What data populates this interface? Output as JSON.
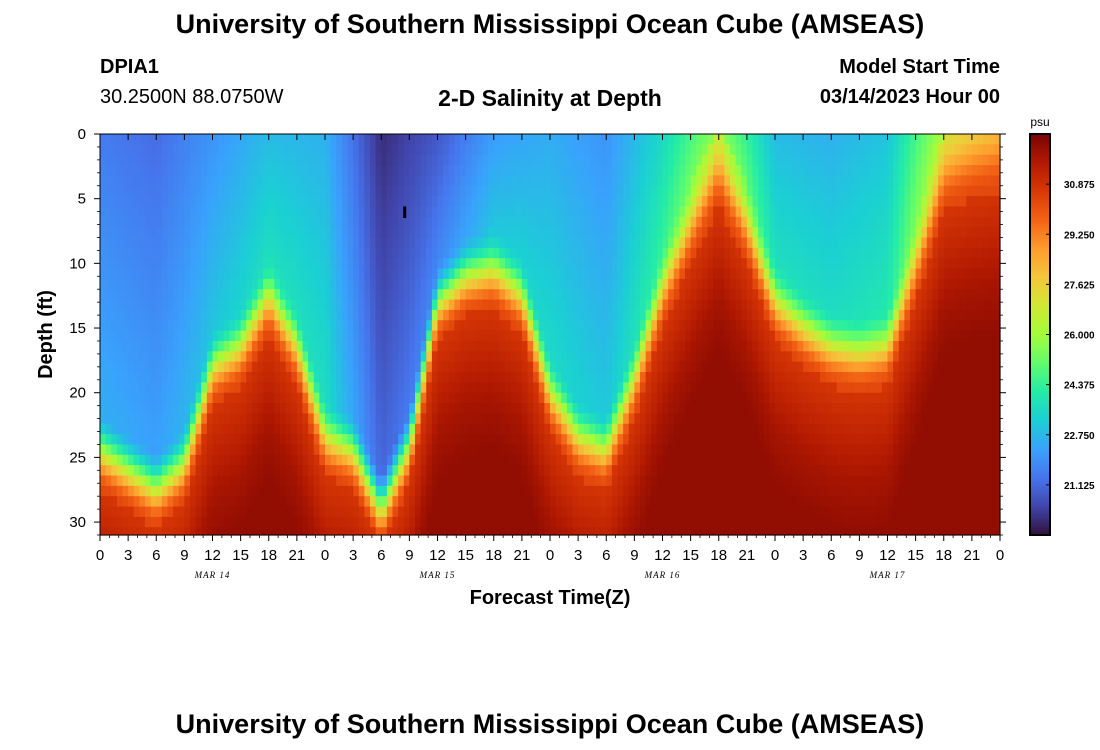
{
  "header": {
    "title": "University of Southern Mississippi Ocean Cube (AMSEAS)",
    "station_id": "DPIA1",
    "station_coords": "30.2500N  88.0750W",
    "plot_title": "2-D Salinity at Depth",
    "model_start_label": "Model Start Time",
    "model_start_value": "03/14/2023 Hour 00"
  },
  "footer": {
    "title": "University of Southern Mississippi Ocean Cube (AMSEAS)"
  },
  "chart_data": {
    "type": "heatmap",
    "title": "2-D Salinity at Depth",
    "xlabel": "Forecast Time(Z)",
    "ylabel": "Depth (ft)",
    "x_range_hours": [
      0,
      96
    ],
    "x_ticks_hours": [
      0,
      3,
      6,
      9,
      12,
      15,
      18,
      21,
      24,
      27,
      30,
      33,
      36,
      39,
      42,
      45,
      48,
      51,
      54,
      57,
      60,
      63,
      66,
      69,
      72,
      75,
      78,
      81,
      84,
      87,
      90,
      93,
      96
    ],
    "x_tick_labels": [
      "0",
      "3",
      "6",
      "9",
      "12",
      "15",
      "18",
      "21",
      "0",
      "3",
      "6",
      "9",
      "12",
      "15",
      "18",
      "21",
      "0",
      "3",
      "6",
      "9",
      "12",
      "15",
      "18",
      "21",
      "0",
      "3",
      "6",
      "9",
      "12",
      "15",
      "18",
      "21",
      "0"
    ],
    "date_labels": [
      {
        "text": "MAR 14",
        "hour": 12
      },
      {
        "text": "MAR 15",
        "hour": 36
      },
      {
        "text": "MAR 16",
        "hour": 60
      },
      {
        "text": "MAR 17",
        "hour": 84
      }
    ],
    "y_range": [
      0,
      31
    ],
    "y_ticks": [
      0,
      5,
      10,
      15,
      20,
      25,
      30
    ],
    "colorbar": {
      "unit": "psu",
      "min": 19.5,
      "max": 32.5,
      "tick_labels": [
        "30.875",
        "29.250",
        "27.625",
        "26.000",
        "24.375",
        "22.750",
        "21.125"
      ],
      "tick_values": [
        30.875,
        29.25,
        27.625,
        26.0,
        24.375,
        22.75,
        21.125
      ],
      "colors": [
        "#30123b",
        "#4145ab",
        "#4675ed",
        "#39a2fc",
        "#1bcfd4",
        "#24eca6",
        "#61fc6c",
        "#a4fc3b",
        "#d1e834",
        "#f3c63a",
        "#fe9b2d",
        "#f36315",
        "#d93806",
        "#b11901",
        "#7a0403"
      ]
    },
    "surface_salinity_series": {
      "hours": [
        0,
        6,
        12,
        18,
        24,
        30,
        36,
        42,
        48,
        54,
        60,
        66,
        72,
        78,
        84,
        90,
        96
      ],
      "values": [
        21.5,
        21.2,
        22.0,
        22.8,
        22.6,
        20.0,
        20.8,
        22.2,
        22.5,
        22.0,
        23.5,
        25.8,
        22.8,
        22.6,
        23.0,
        26.2,
        26.8
      ]
    },
    "interface_depth_ft": {
      "hours": [
        0,
        3,
        6,
        9,
        12,
        15,
        18,
        21,
        24,
        27,
        30,
        33,
        36,
        39,
        42,
        45,
        48,
        51,
        54,
        57,
        60,
        63,
        66,
        69,
        72,
        75,
        78,
        81,
        84,
        87,
        90,
        93,
        96
      ],
      "values": [
        24.5,
        26,
        27.5,
        25.5,
        18,
        16.5,
        12.5,
        16.5,
        23.5,
        24.5,
        29,
        24,
        13,
        11,
        10.5,
        12.5,
        20,
        23.5,
        24.5,
        19,
        12,
        7,
        2.5,
        7,
        13,
        15,
        16.5,
        17,
        16.5,
        10,
        3,
        2,
        1.5
      ]
    },
    "bottom_salinity": 31.5
  }
}
